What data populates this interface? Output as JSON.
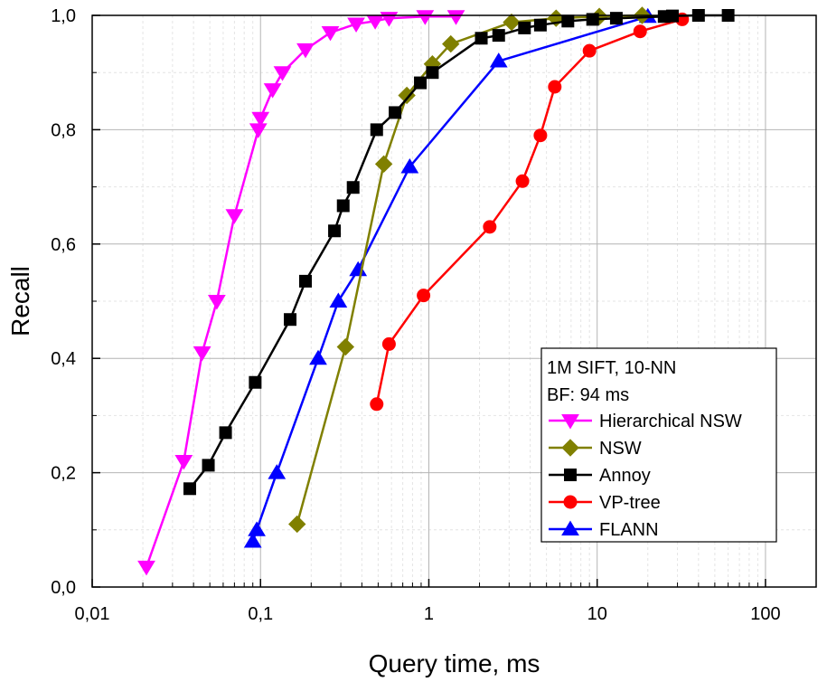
{
  "chart_data": {
    "type": "line",
    "xlabel": "Query time, ms",
    "ylabel": "Recall",
    "x_scale": "log",
    "xlim": [
      0.01,
      200
    ],
    "ylim": [
      0,
      1.0
    ],
    "x_ticks": [
      {
        "value": 0.01,
        "label": "0,01"
      },
      {
        "value": 0.1,
        "label": "0,1"
      },
      {
        "value": 1,
        "label": "1"
      },
      {
        "value": 10,
        "label": "10"
      },
      {
        "value": 100,
        "label": "100"
      }
    ],
    "y_ticks": [
      {
        "value": 0.0,
        "label": "0,0"
      },
      {
        "value": 0.2,
        "label": "0,2"
      },
      {
        "value": 0.4,
        "label": "0,4"
      },
      {
        "value": 0.6,
        "label": "0,6"
      },
      {
        "value": 0.8,
        "label": "0,8"
      },
      {
        "value": 1.0,
        "label": "1,0"
      }
    ],
    "grid": true,
    "legend_position": "bottom-right",
    "legend_header": [
      "1M SIFT, 10-NN",
      "BF: 94 ms"
    ],
    "series": [
      {
        "name": "Hierarchical NSW",
        "color": "#ff00ff",
        "marker": "triangle-down",
        "x": [
          0.021,
          0.035,
          0.045,
          0.055,
          0.07,
          0.097,
          0.1,
          0.118,
          0.135,
          0.185,
          0.26,
          0.37,
          0.48,
          0.58,
          0.95,
          1.45
        ],
        "y": [
          0.035,
          0.22,
          0.41,
          0.5,
          0.65,
          0.8,
          0.82,
          0.87,
          0.9,
          0.94,
          0.97,
          0.985,
          0.99,
          0.995,
          0.998,
          0.998
        ]
      },
      {
        "name": "NSW",
        "color": "#808000",
        "marker": "diamond",
        "x": [
          0.165,
          0.32,
          0.54,
          0.74,
          1.05,
          1.35,
          3.1,
          5.7,
          10.3,
          18.5
        ],
        "y": [
          0.11,
          0.42,
          0.74,
          0.86,
          0.915,
          0.95,
          0.988,
          0.995,
          0.998,
          1.0
        ]
      },
      {
        "name": "Annoy",
        "color": "#000000",
        "marker": "square",
        "x": [
          0.038,
          0.049,
          0.062,
          0.093,
          0.15,
          0.185,
          0.275,
          0.31,
          0.355,
          0.49,
          0.63,
          0.89,
          1.05,
          2.05,
          2.6,
          3.7,
          4.6,
          6.7,
          9.4,
          13,
          25,
          28,
          40,
          60
        ],
        "y": [
          0.172,
          0.213,
          0.27,
          0.358,
          0.468,
          0.535,
          0.623,
          0.667,
          0.699,
          0.8,
          0.83,
          0.882,
          0.9,
          0.96,
          0.965,
          0.978,
          0.983,
          0.99,
          0.993,
          0.995,
          0.998,
          0.999,
          1.0,
          1.0
        ]
      },
      {
        "name": "VP-tree",
        "color": "#ff0000",
        "marker": "circle",
        "x": [
          0.49,
          0.58,
          0.93,
          2.3,
          3.6,
          4.6,
          5.6,
          9.0,
          18,
          32
        ],
        "y": [
          0.32,
          0.425,
          0.51,
          0.63,
          0.71,
          0.79,
          0.875,
          0.938,
          0.972,
          0.993
        ]
      },
      {
        "name": "FLANN",
        "color": "#0000ff",
        "marker": "triangle-up",
        "x": [
          0.09,
          0.095,
          0.125,
          0.22,
          0.29,
          0.38,
          0.77,
          2.6,
          20
        ],
        "y": [
          0.08,
          0.1,
          0.2,
          0.4,
          0.5,
          0.555,
          0.735,
          0.92,
          0.998
        ]
      }
    ]
  }
}
